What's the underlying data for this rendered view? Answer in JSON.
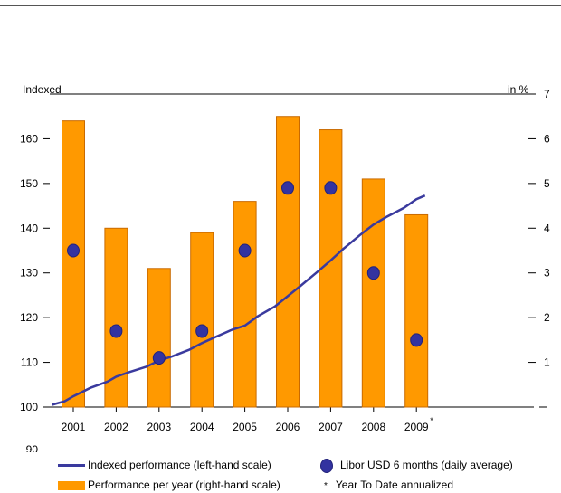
{
  "chart_data": {
    "type": "bar+line",
    "categories": [
      "2001",
      "2002",
      "2003",
      "2004",
      "2005",
      "2006",
      "2007",
      "2008",
      "2009"
    ],
    "category_notes": [
      "",
      "",
      "",
      "",
      "",
      "",
      "",
      "",
      "*"
    ],
    "left_axis": {
      "label": "Indexed",
      "ticks": [
        90,
        100,
        110,
        120,
        130,
        140,
        150,
        160
      ],
      "ylim": [
        100,
        170
      ]
    },
    "right_axis": {
      "label": "in %",
      "ticks": [
        1,
        2,
        3,
        4,
        5,
        6,
        7
      ],
      "ylim": [
        0,
        7
      ]
    },
    "series": [
      {
        "name": "Performance per year (right-hand scale)",
        "type": "bar",
        "axis": "right",
        "color": "#ff9900",
        "values": [
          6.4,
          4.0,
          3.1,
          3.9,
          4.6,
          6.5,
          6.2,
          5.1,
          4.3
        ]
      },
      {
        "name": "Libor USD 6 months (daily average)",
        "type": "scatter",
        "axis": "right",
        "color": "#3333a0",
        "values": [
          3.5,
          1.7,
          1.1,
          1.7,
          3.5,
          4.9,
          4.9,
          3.0,
          1.5
        ]
      },
      {
        "name": "Indexed performance (left-hand scale)",
        "type": "line",
        "axis": "left",
        "color": "#3a3a9e",
        "points": [
          [
            2000.5,
            100.5
          ],
          [
            2000.8,
            101.3
          ],
          [
            2001.0,
            102.4
          ],
          [
            2001.4,
            104.3
          ],
          [
            2001.8,
            105.7
          ],
          [
            2002.0,
            106.8
          ],
          [
            2002.3,
            107.8
          ],
          [
            2002.7,
            109.0
          ],
          [
            2003.0,
            110.4
          ],
          [
            2003.3,
            111.3
          ],
          [
            2003.7,
            112.8
          ],
          [
            2004.0,
            114.3
          ],
          [
            2004.3,
            115.6
          ],
          [
            2004.7,
            117.3
          ],
          [
            2005.0,
            118.2
          ],
          [
            2005.3,
            120.3
          ],
          [
            2005.7,
            122.5
          ],
          [
            2006.0,
            124.8
          ],
          [
            2006.3,
            127.1
          ],
          [
            2006.7,
            130.3
          ],
          [
            2007.0,
            132.8
          ],
          [
            2007.3,
            135.4
          ],
          [
            2007.7,
            138.6
          ],
          [
            2008.0,
            140.8
          ],
          [
            2008.3,
            142.5
          ],
          [
            2008.7,
            144.5
          ],
          [
            2009.0,
            146.5
          ],
          [
            2009.2,
            147.3
          ]
        ]
      }
    ],
    "legend_placement": "bottom",
    "footnote": "Year To Date annualized",
    "footnote_marker": "*",
    "grid": false
  }
}
